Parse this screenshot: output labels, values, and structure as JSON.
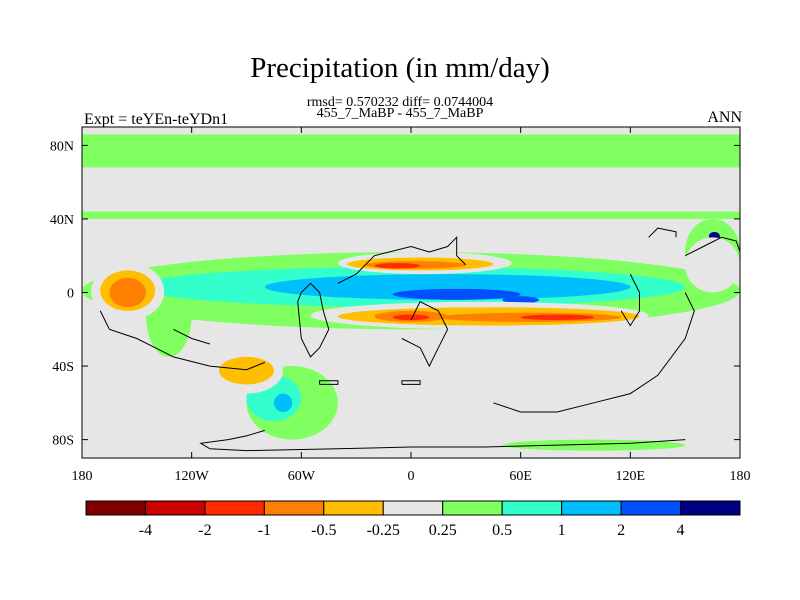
{
  "title": "Precipitation (in mm/day)",
  "subtitle_stats": "rmsd= 0.570232 diff= 0.0744004",
  "case_label": "455_7_MaBP - 455_7_MaBP",
  "left_label": "Expt = teYEn-teYDn1",
  "right_label": "ANN",
  "chart_data": {
    "type": "heatmap",
    "projection": "cylindrical-equidistant",
    "x_axis": {
      "range": [
        -180,
        180
      ],
      "ticks": [
        {
          "value": -180,
          "label": "180"
        },
        {
          "value": -120,
          "label": "120W"
        },
        {
          "value": -60,
          "label": "60W"
        },
        {
          "value": 0,
          "label": "0"
        },
        {
          "value": 60,
          "label": "60E"
        },
        {
          "value": 120,
          "label": "120E"
        },
        {
          "value": 180,
          "label": "180"
        }
      ]
    },
    "y_axis": {
      "range": [
        -90,
        90
      ],
      "ticks": [
        {
          "value": 80,
          "label": "80N"
        },
        {
          "value": 40,
          "label": "40N"
        },
        {
          "value": 0,
          "label": "0"
        },
        {
          "value": -40,
          "label": "40S"
        },
        {
          "value": -80,
          "label": "80S"
        }
      ]
    },
    "colorbar": {
      "colors": [
        "#7f0000",
        "#cc0000",
        "#ff2a00",
        "#ff7f00",
        "#ffbf00",
        "#e6e6e6",
        "#80ff60",
        "#33ffcc",
        "#00bfff",
        "#0050ff",
        "#000080"
      ],
      "boundaries": [
        -4,
        -2,
        -1,
        -0.5,
        -0.25,
        0.25,
        0.5,
        1,
        2,
        4
      ],
      "labels": [
        "-4",
        "-2",
        "-1",
        "-0.5",
        "-0.25",
        "0.25",
        "0.5",
        "1",
        "2",
        "4"
      ]
    },
    "regions": [
      {
        "level": 0.25,
        "shape": "band",
        "lon": [
          -180,
          180
        ],
        "lat": [
          68,
          86
        ]
      },
      {
        "level": 0.25,
        "shape": "band",
        "lon": [
          -180,
          180
        ],
        "lat": [
          40,
          44
        ]
      },
      {
        "level": 0.25,
        "shape": "ellipse",
        "lon": [
          -180,
          180
        ],
        "lat": [
          -20,
          22
        ]
      },
      {
        "level": 0.25,
        "shape": "ellipse",
        "lon": [
          -145,
          -120
        ],
        "lat": [
          -35,
          10
        ]
      },
      {
        "level": 0.25,
        "shape": "ellipse",
        "lon": [
          -90,
          -40
        ],
        "lat": [
          -80,
          -40
        ]
      },
      {
        "level": 0.25,
        "shape": "ellipse",
        "lon": [
          50,
          150
        ],
        "lat": [
          -86,
          -80
        ]
      },
      {
        "level": 0.25,
        "shape": "ellipse",
        "lon": [
          150,
          180
        ],
        "lat": [
          5,
          40
        ]
      },
      {
        "level": 0.5,
        "shape": "ellipse",
        "lon": [
          -150,
          150
        ],
        "lat": [
          -8,
          14
        ]
      },
      {
        "level": 0.5,
        "shape": "ellipse",
        "lon": [
          -90,
          -60
        ],
        "lat": [
          -70,
          -45
        ]
      },
      {
        "level": 1,
        "shape": "ellipse",
        "lon": [
          -80,
          120
        ],
        "lat": [
          -4,
          10
        ]
      },
      {
        "level": 1,
        "shape": "ellipse",
        "lon": [
          -75,
          -65
        ],
        "lat": [
          -65,
          -55
        ]
      },
      {
        "level": 2,
        "shape": "ellipse",
        "lon": [
          -10,
          60
        ],
        "lat": [
          -4,
          2
        ]
      },
      {
        "level": 2,
        "shape": "ellipse",
        "lon": [
          50,
          70
        ],
        "lat": [
          -6,
          -2
        ]
      },
      {
        "level": 4,
        "shape": "ellipse",
        "lon": [
          163,
          169
        ],
        "lat": [
          28,
          33
        ]
      },
      {
        "level": -0.25,
        "shape": "ellipse",
        "lon": [
          -175,
          -135
        ],
        "lat": [
          -15,
          16
        ]
      },
      {
        "level": -0.25,
        "shape": "ellipse",
        "lon": [
          -55,
          130
        ],
        "lat": [
          -20,
          -5
        ]
      },
      {
        "level": -0.25,
        "shape": "ellipse",
        "lon": [
          -40,
          55
        ],
        "lat": [
          10,
          22
        ]
      },
      {
        "level": -0.25,
        "shape": "ellipse",
        "lon": [
          -110,
          -70
        ],
        "lat": [
          -55,
          -30
        ]
      },
      {
        "level": -0.25,
        "shape": "ellipse",
        "lon": [
          5,
          35
        ],
        "lat": [
          25,
          32
        ]
      },
      {
        "level": -0.25,
        "shape": "ellipse",
        "lon": [
          150,
          180
        ],
        "lat": [
          0,
          30
        ]
      },
      {
        "level": -0.5,
        "shape": "ellipse",
        "lon": [
          -170,
          -140
        ],
        "lat": [
          -10,
          12
        ]
      },
      {
        "level": -0.5,
        "shape": "ellipse",
        "lon": [
          -40,
          125
        ],
        "lat": [
          -18,
          -8
        ]
      },
      {
        "level": -0.5,
        "shape": "ellipse",
        "lon": [
          -35,
          45
        ],
        "lat": [
          12,
          19
        ]
      },
      {
        "level": -0.5,
        "shape": "ellipse",
        "lon": [
          -105,
          -75
        ],
        "lat": [
          -50,
          -35
        ]
      },
      {
        "level": -1,
        "shape": "ellipse",
        "lon": [
          -165,
          -145
        ],
        "lat": [
          -8,
          8
        ]
      },
      {
        "level": -1,
        "shape": "ellipse",
        "lon": [
          15,
          115
        ],
        "lat": [
          -16,
          -11
        ]
      },
      {
        "level": -1,
        "shape": "ellipse",
        "lon": [
          -20,
          20
        ],
        "lat": [
          -16,
          -10
        ]
      },
      {
        "level": -1,
        "shape": "ellipse",
        "lon": [
          -25,
          30
        ],
        "lat": [
          13,
          17
        ]
      },
      {
        "level": -2,
        "shape": "ellipse",
        "lon": [
          -20,
          5
        ],
        "lat": [
          13,
          16
        ]
      },
      {
        "level": -2,
        "shape": "ellipse",
        "lon": [
          60,
          100
        ],
        "lat": [
          -15,
          -12
        ]
      },
      {
        "level": -2,
        "shape": "ellipse",
        "lon": [
          -10,
          10
        ],
        "lat": [
          -15,
          -12
        ]
      }
    ],
    "land_outline_segments": [
      [
        [
          -170,
          -10
        ],
        [
          -165,
          -20
        ],
        [
          -150,
          -25
        ],
        [
          -140,
          -30
        ],
        [
          -130,
          -35
        ],
        [
          -110,
          -40
        ],
        [
          -90,
          -42
        ],
        [
          -80,
          -38
        ]
      ],
      [
        [
          -130,
          -20
        ],
        [
          -120,
          -25
        ],
        [
          -110,
          -28
        ]
      ],
      [
        [
          -60,
          0
        ],
        [
          -55,
          5
        ],
        [
          -50,
          0
        ],
        [
          -48,
          -10
        ],
        [
          -45,
          -20
        ],
        [
          -50,
          -30
        ],
        [
          -55,
          -35
        ],
        [
          -60,
          -25
        ],
        [
          -62,
          -5
        ],
        [
          -60,
          0
        ]
      ],
      [
        [
          -40,
          5
        ],
        [
          -30,
          10
        ],
        [
          -20,
          20
        ],
        [
          0,
          25
        ],
        [
          10,
          22
        ],
        [
          20,
          25
        ],
        [
          25,
          30
        ],
        [
          25,
          20
        ],
        [
          30,
          15
        ]
      ],
      [
        [
          -5,
          -25
        ],
        [
          5,
          -30
        ],
        [
          10,
          -40
        ],
        [
          15,
          -30
        ],
        [
          20,
          -20
        ],
        [
          15,
          -10
        ],
        [
          5,
          -5
        ],
        [
          0,
          -15
        ]
      ],
      [
        [
          -5,
          -50
        ],
        [
          5,
          -50
        ],
        [
          5,
          -48
        ],
        [
          -5,
          -48
        ],
        [
          -5,
          -50
        ]
      ],
      [
        [
          -50,
          -50
        ],
        [
          -40,
          -50
        ],
        [
          -40,
          -48
        ],
        [
          -50,
          -48
        ],
        [
          -50,
          -50
        ]
      ],
      [
        [
          45,
          -60
        ],
        [
          60,
          -65
        ],
        [
          80,
          -65
        ],
        [
          100,
          -60
        ],
        [
          120,
          -55
        ],
        [
          135,
          -45
        ],
        [
          150,
          -25
        ],
        [
          155,
          -10
        ],
        [
          150,
          0
        ]
      ],
      [
        [
          120,
          10
        ],
        [
          125,
          0
        ],
        [
          125,
          -10
        ],
        [
          120,
          -18
        ],
        [
          115,
          -10
        ]
      ],
      [
        [
          130,
          30
        ],
        [
          135,
          35
        ],
        [
          145,
          33
        ],
        [
          145,
          30
        ]
      ],
      [
        [
          150,
          20
        ],
        [
          160,
          25
        ],
        [
          170,
          30
        ],
        [
          178,
          28
        ],
        [
          180,
          22
        ]
      ],
      [
        [
          150,
          -80
        ],
        [
          120,
          -82
        ],
        [
          80,
          -83
        ],
        [
          40,
          -84
        ],
        [
          0,
          -84
        ],
        [
          -40,
          -85
        ],
        [
          -90,
          -86
        ],
        [
          -110,
          -85
        ],
        [
          -115,
          -82
        ],
        [
          -100,
          -80
        ],
        [
          -90,
          -78
        ],
        [
          -80,
          -75
        ]
      ]
    ]
  }
}
